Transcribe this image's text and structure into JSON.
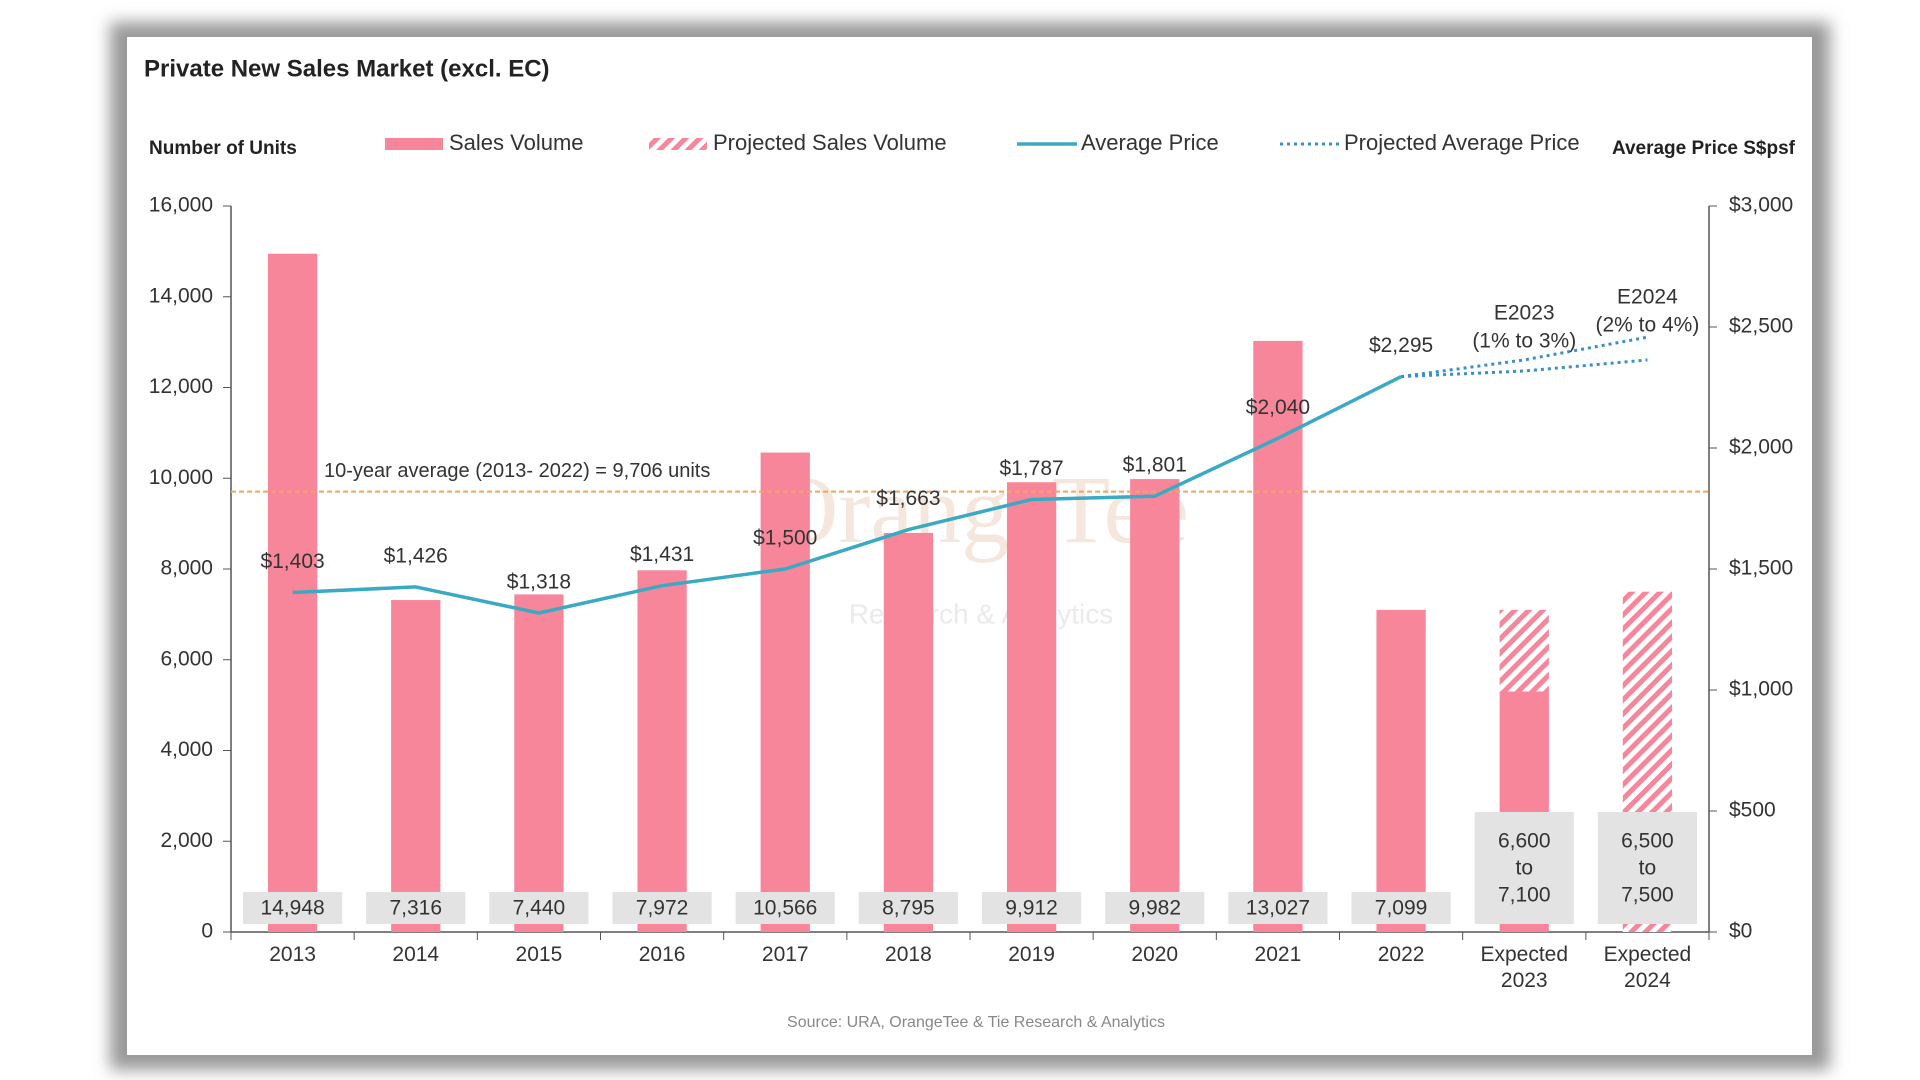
{
  "chart_data": {
    "type": "bar_line",
    "title": "Private New Sales Market (excl. EC)",
    "y_axis_label": "Number of Units",
    "y2_axis_label": "Average Price S$psf",
    "source": "Source: URA, OrangeTee & Tie Research & Analytics",
    "watermark": [
      "OrangeTee",
      "Research & Analytics"
    ],
    "categories": [
      "2013",
      "2014",
      "2015",
      "2016",
      "2017",
      "2018",
      "2019",
      "2020",
      "2021",
      "2022",
      "Expected 2023",
      "Expected 2024"
    ],
    "series": [
      {
        "name": "Sales Volume",
        "kind": "bar",
        "color": "#f7869b",
        "values": [
          14948,
          7316,
          7440,
          7972,
          10566,
          8795,
          9912,
          9982,
          13027,
          7099,
          5300,
          null
        ],
        "value_labels": [
          "14,948",
          "7,316",
          "7,440",
          "7,972",
          "10,566",
          "8,795",
          "9,912",
          "9,982",
          "13,027",
          "7,099",
          null,
          null
        ]
      },
      {
        "name": "Projected Sales Volume",
        "kind": "hatched-bar",
        "color": "#f7869b",
        "values": [
          null,
          null,
          null,
          null,
          null,
          null,
          null,
          null,
          null,
          null,
          1800,
          7500
        ]
      },
      {
        "name": "Average Price",
        "kind": "line",
        "axis": "y2",
        "color": "#3aa9c2",
        "values": [
          1403,
          1426,
          1318,
          1431,
          1500,
          1663,
          1787,
          1801,
          2040,
          2295,
          null,
          null
        ],
        "value_labels": [
          "$1,403",
          "$1,426",
          "$1,318",
          "$1,431",
          "$1,500",
          "$1,663",
          "$1,787",
          "$1,801",
          "$2,040",
          "$2,295",
          null,
          null
        ]
      },
      {
        "name": "Projected Average Price",
        "kind": "dotted-line",
        "axis": "y2",
        "color": "#3a8fc9",
        "values": [
          null,
          null,
          null,
          null,
          null,
          null,
          null,
          null,
          null,
          2295,
          2318,
          2364
        ],
        "values_high": [
          null,
          null,
          null,
          null,
          null,
          null,
          null,
          null,
          null,
          2295,
          2364,
          2458
        ]
      }
    ],
    "range_labels": [
      null,
      null,
      null,
      null,
      null,
      null,
      null,
      null,
      null,
      null,
      [
        "6,600",
        "to",
        "7,100"
      ],
      [
        "6,500",
        "to",
        "7,500"
      ]
    ],
    "projection_notes": [
      null,
      null,
      null,
      null,
      null,
      null,
      null,
      null,
      null,
      null,
      [
        "E2023",
        "(1% to 3%)"
      ],
      [
        "E2024",
        "(2% to 4%)"
      ]
    ],
    "average_line": {
      "value": 9706,
      "label": "10-year average (2013- 2022) = 9,706 units",
      "color": "#f5a35c"
    },
    "ylim": [
      0,
      16000
    ],
    "yticks": [
      0,
      {
        "value": 2000,
        "label": "2,000"
      },
      {
        "value": 4000,
        "label": "4,000"
      },
      {
        "value": 6000,
        "label": "6,000"
      },
      {
        "value": 8000,
        "label": "8,000"
      },
      {
        "value": 10000,
        "label": "10,000"
      },
      {
        "value": 12000,
        "label": "12,000"
      },
      {
        "value": 14000,
        "label": "14,000"
      },
      {
        "value": 16000,
        "label": "16,000"
      }
    ],
    "y2lim": [
      0,
      3000
    ],
    "y2ticks": [
      {
        "value": 0,
        "label": "$0"
      },
      {
        "value": 500,
        "label": "$500"
      },
      {
        "value": 1000,
        "label": "$1,000"
      },
      {
        "value": 1500,
        "label": "$1,500"
      },
      {
        "value": 2000,
        "label": "$2,000"
      },
      {
        "value": 2500,
        "label": "$2,500"
      },
      {
        "value": 3000,
        "label": "$3,000"
      }
    ],
    "legend": "top"
  }
}
